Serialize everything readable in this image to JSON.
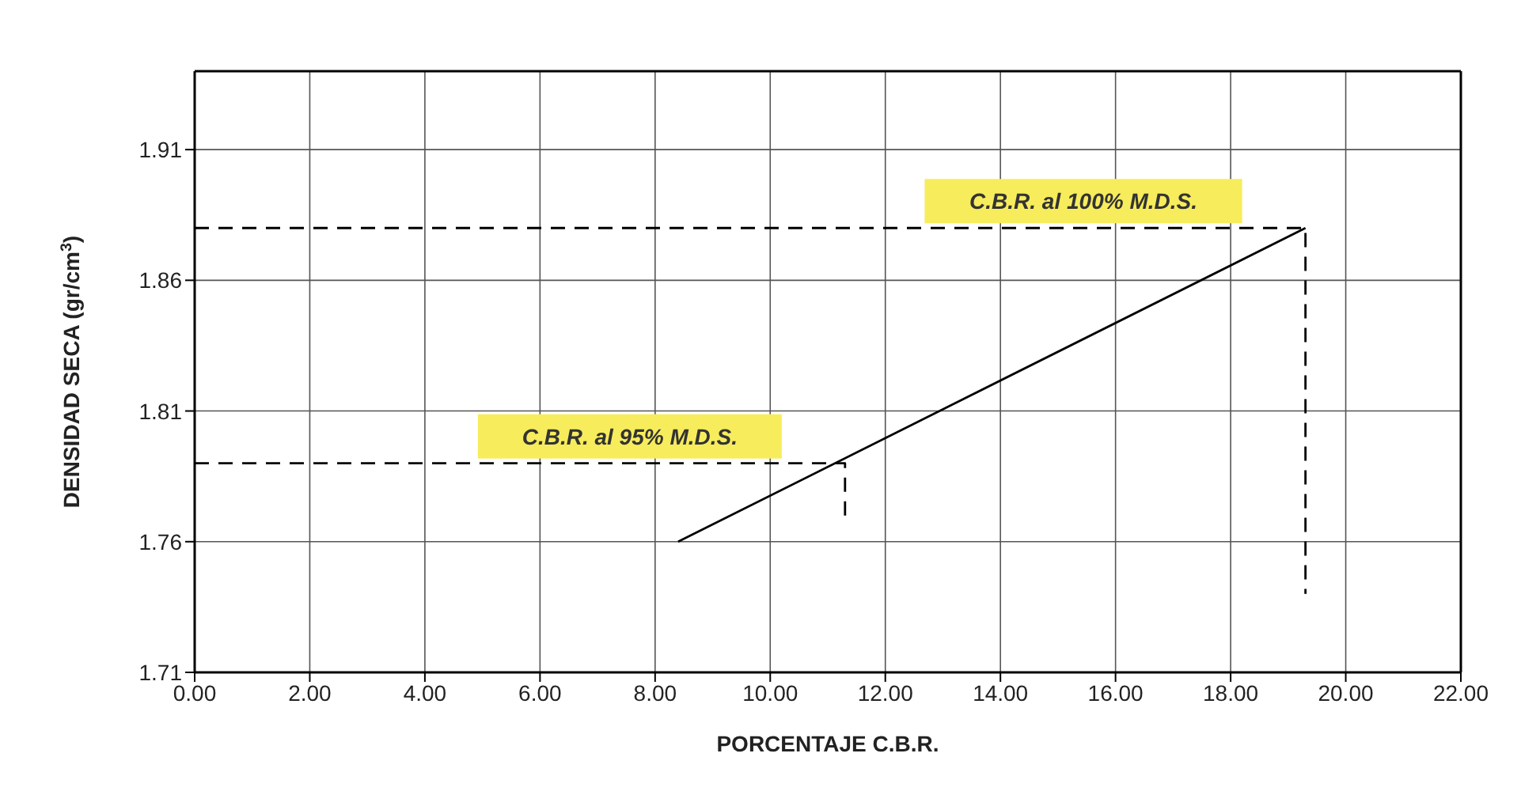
{
  "chart_data": {
    "type": "line",
    "xlabel": "PORCENTAJE C.B.R.",
    "ylabel": "DENSIDAD SECA (gr/cm$^{3}$)",
    "xlim": [
      0,
      22
    ],
    "ylim": [
      1.71,
      1.94
    ],
    "xticks": [
      {
        "value": 0,
        "label": "0.00"
      },
      {
        "value": 2,
        "label": "2.00"
      },
      {
        "value": 4,
        "label": "4.00"
      },
      {
        "value": 6,
        "label": "6.00"
      },
      {
        "value": 8,
        "label": "8.00"
      },
      {
        "value": 10,
        "label": "10.00"
      },
      {
        "value": 12,
        "label": "12.00"
      },
      {
        "value": 14,
        "label": "14.00"
      },
      {
        "value": 16,
        "label": "16.00"
      },
      {
        "value": 18,
        "label": "18.00"
      },
      {
        "value": 20,
        "label": "20.00"
      },
      {
        "value": 22,
        "label": "22.00"
      }
    ],
    "yticks": [
      1.71,
      1.76,
      1.81,
      1.86,
      1.91
    ],
    "grid": true,
    "series": [
      {
        "color": "#000000",
        "line_style": "solid",
        "x": [
          8.4,
          19.3
        ],
        "values": [
          1.76,
          1.88
        ]
      },
      {
        "color": "#000000",
        "line_style": "dashed",
        "x": [
          0,
          11.3,
          11.3
        ],
        "values": [
          1.79,
          1.79,
          1.77
        ]
      },
      {
        "color": "#000000",
        "line_style": "dashed",
        "x": [
          0,
          19.3,
          19.3
        ],
        "values": [
          1.88,
          1.88,
          1.74
        ]
      }
    ],
    "annotations": [
      "C.B.R. al 95% M.D.S.",
      "C.B.R. al 100% M.D.S."
    ]
  }
}
